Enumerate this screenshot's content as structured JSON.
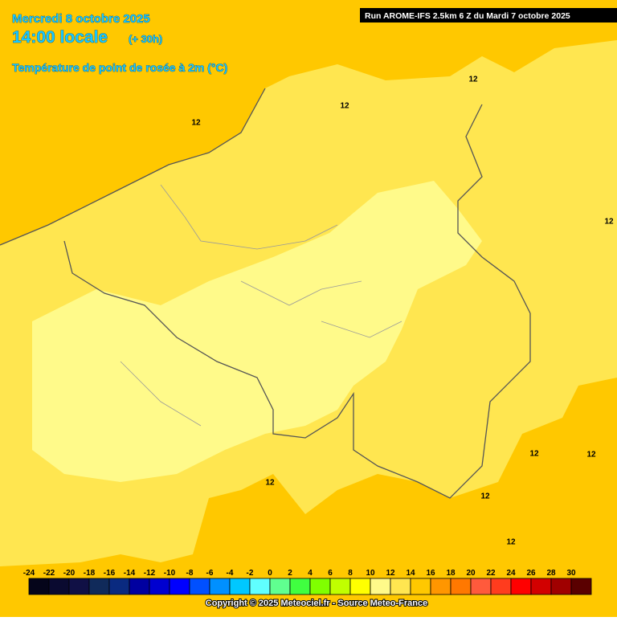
{
  "header": {
    "date": "Mercredi 8 octobre 2025",
    "time": "14:00 locale",
    "lead": "(+ 30h)",
    "parameter": "Température de point de rosée à 2m (°C)",
    "run": "Run AROME-IFS 2.5km 6 Z du Mardi 7 octobre 2025"
  },
  "contour_labels": [
    "12",
    "12",
    "12",
    "12",
    "12",
    "12",
    "12",
    "12",
    "12"
  ],
  "legend": {
    "ticks": [
      -24,
      -22,
      -20,
      -18,
      -16,
      -14,
      -12,
      -10,
      -8,
      -6,
      -4,
      -2,
      0,
      2,
      4,
      6,
      8,
      10,
      12,
      14,
      16,
      18,
      20,
      22,
      24,
      26,
      28,
      30
    ],
    "colors": [
      "#05051a",
      "#0a0a30",
      "#101045",
      "#102a5a",
      "#0a2a80",
      "#0000a0",
      "#0000d0",
      "#0000ff",
      "#0050ff",
      "#0090ff",
      "#00c8ff",
      "#60ffff",
      "#60ff90",
      "#40ff40",
      "#80ff00",
      "#c0ff00",
      "#ffff00",
      "#fffa8a",
      "#ffe650",
      "#ffc800",
      "#ff9600",
      "#ff7800",
      "#ff5a3c",
      "#ff3c1e",
      "#ff0000",
      "#d20000",
      "#a00000",
      "#5a0000"
    ]
  },
  "footer": "Copyright © 2025 Meteociel.fr - Source Meteo-France"
}
